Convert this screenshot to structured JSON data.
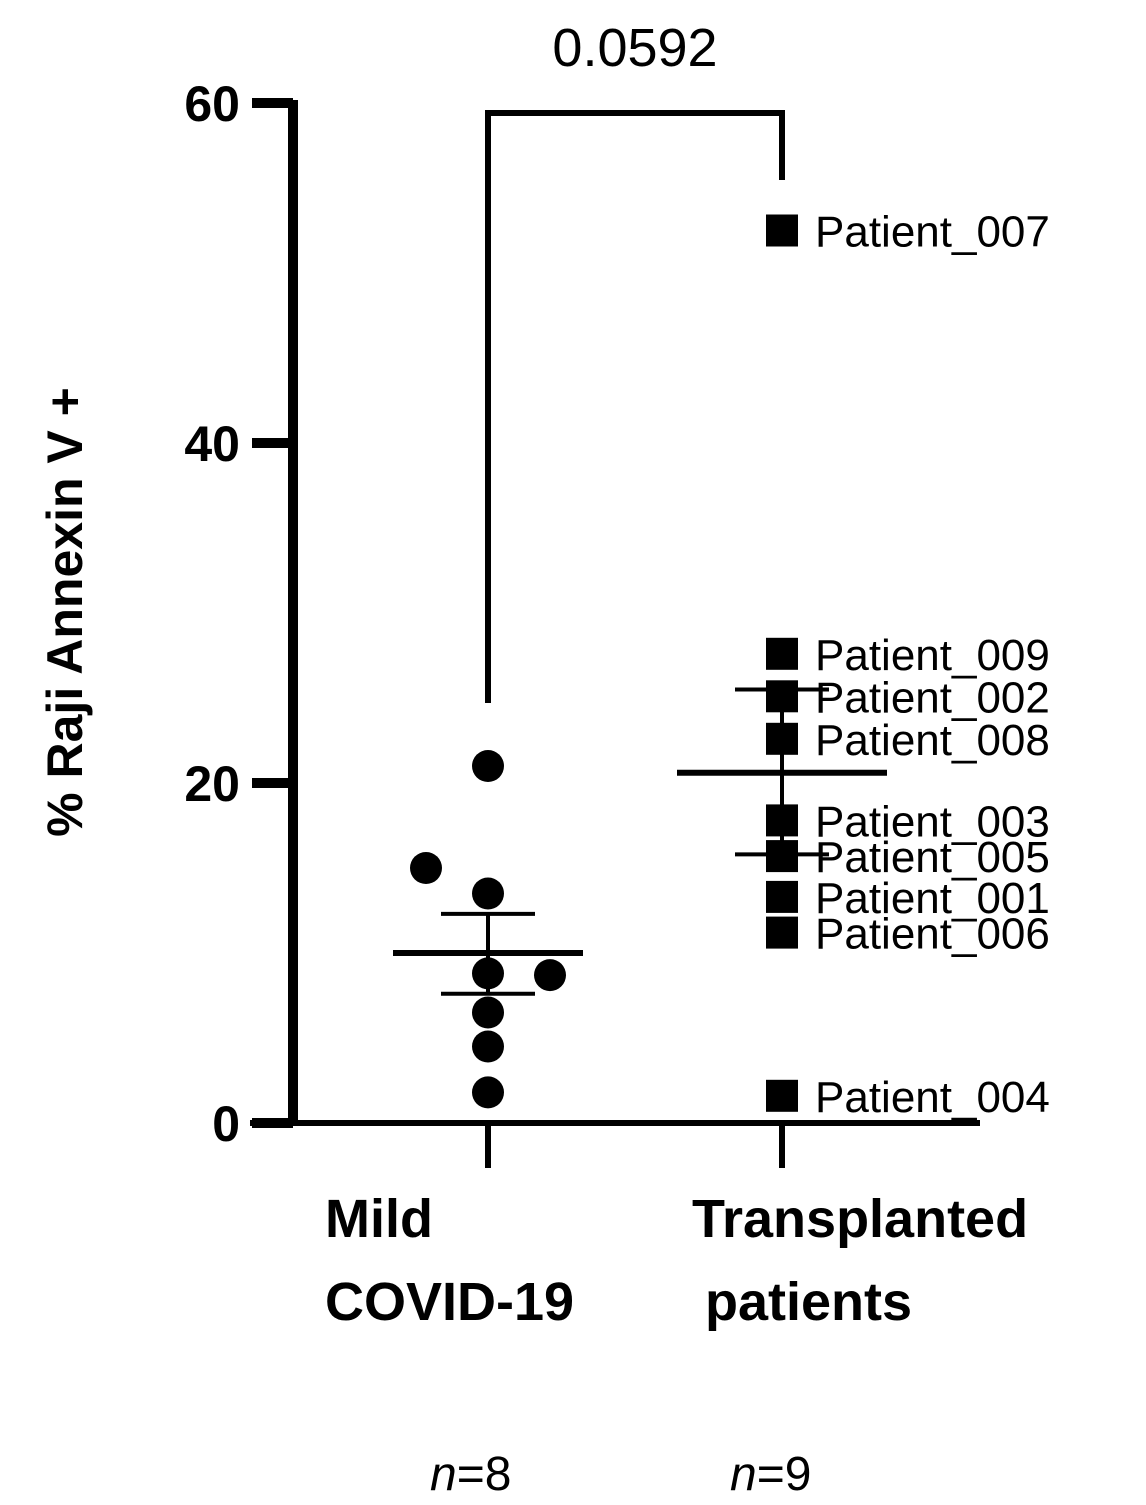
{
  "chart_data": {
    "type": "scatter",
    "ylabel": "% Raji Annexin V +",
    "ylim": [
      0,
      60
    ],
    "yticks": [
      "0",
      "20",
      "40",
      "60"
    ],
    "categories": [
      "Mild\nCOVID-19",
      "Transplanted\npatients"
    ],
    "category_lines": [
      [
        "Mild",
        "COVID-19"
      ],
      [
        "Transplanted",
        "patients"
      ]
    ],
    "n_labels": [
      {
        "italic": "n",
        "rest": "=8"
      },
      {
        "italic": "n",
        "rest": "=9"
      }
    ],
    "comparison": {
      "label": "0.0592",
      "between": [
        0,
        1
      ]
    },
    "series": [
      {
        "marker": "circle",
        "category": 0,
        "points": [
          {
            "y": 21.0,
            "dx": 0
          },
          {
            "y": 15.0,
            "dx": -62
          },
          {
            "y": 13.5,
            "dx": 0
          },
          {
            "y": 8.8,
            "dx": 0
          },
          {
            "y": 8.7,
            "dx": 62
          },
          {
            "y": 6.5,
            "dx": 0
          },
          {
            "y": 4.5,
            "dx": 0
          },
          {
            "y": 1.8,
            "dx": 0
          }
        ],
        "mean": 10.0,
        "sem": [
          7.6,
          12.3
        ]
      },
      {
        "marker": "square",
        "category": 1,
        "points": [
          {
            "y": 52.5,
            "label": "Patient_007"
          },
          {
            "y": 27.6,
            "label": "Patient_009"
          },
          {
            "y": 25.1,
            "label": "Patient_002"
          },
          {
            "y": 22.6,
            "label": "Patient_008"
          },
          {
            "y": 17.8,
            "label": "Patient_003"
          },
          {
            "y": 15.7,
            "label": "Patient_005"
          },
          {
            "y": 13.3,
            "label": "Patient_001"
          },
          {
            "y": 11.2,
            "label": "Patient_006"
          },
          {
            "y": 1.6,
            "label": "Patient_004"
          }
        ],
        "mean": 20.6,
        "sem": [
          15.8,
          25.5
        ]
      }
    ]
  }
}
